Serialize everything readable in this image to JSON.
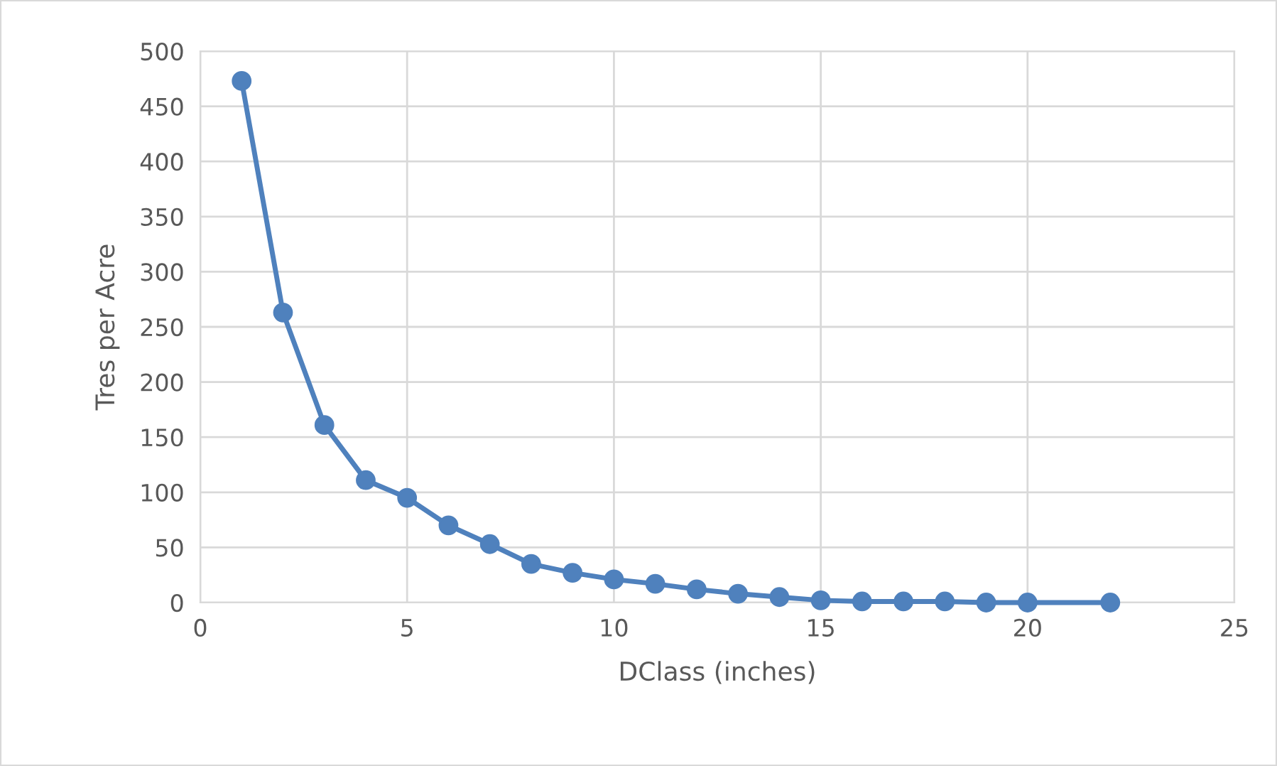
{
  "chart_data": {
    "type": "line",
    "xlabel": "DClass (inches)",
    "ylabel": "Tres per Acre",
    "x": [
      1,
      2,
      3,
      4,
      5,
      6,
      7,
      8,
      9,
      10,
      11,
      12,
      13,
      14,
      15,
      16,
      17,
      18,
      19,
      20,
      22
    ],
    "series": [
      {
        "color": "#4f81bd",
        "values": [
          473,
          263,
          161,
          111,
          95,
          70,
          53,
          35,
          27,
          21,
          17,
          12,
          8,
          5,
          2,
          1,
          1,
          1,
          0,
          0,
          0
        ]
      }
    ],
    "xlim": [
      0,
      25
    ],
    "xticks": [
      0,
      5,
      10,
      15,
      20,
      25
    ],
    "ylim": [
      0,
      500
    ],
    "yticks": [
      0,
      50,
      100,
      150,
      200,
      250,
      300,
      350,
      400,
      450,
      500
    ],
    "grid": true,
    "marker": "circle",
    "line_style": "solid"
  }
}
